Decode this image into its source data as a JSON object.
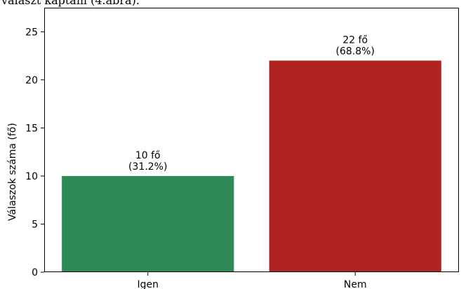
{
  "chart_data": {
    "type": "bar",
    "title": "választ kaptam (4.ábra).",
    "ylabel": "Válaszok száma (fő)",
    "xlabel": "",
    "ylim": [
      0,
      27.5
    ],
    "yticks": [
      0,
      5,
      10,
      15,
      20,
      25
    ],
    "categories": [
      "Igen",
      "Nem"
    ],
    "values": [
      10,
      22
    ],
    "colors": [
      "#2e8b57",
      "#b22222"
    ],
    "data_labels": [
      [
        "10 fő",
        "(31.2%)"
      ],
      [
        "22 fő",
        "(68.8%)"
      ]
    ],
    "grid": false,
    "legend": "none"
  }
}
